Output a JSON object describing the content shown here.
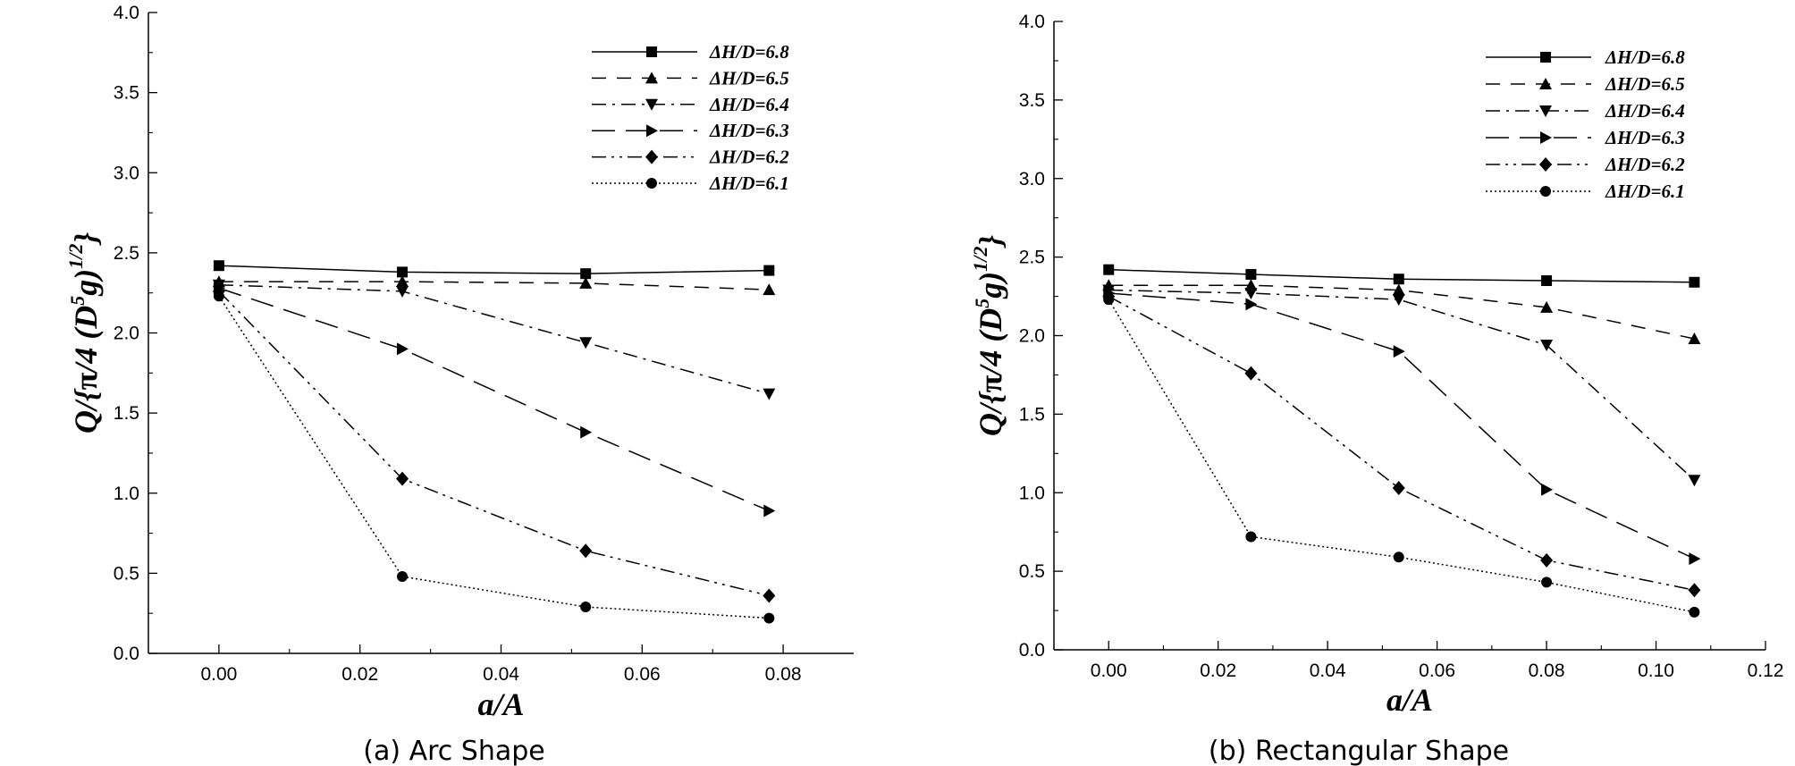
{
  "chart_data": [
    {
      "type": "line",
      "caption": "(a) Arc Shape",
      "xlabel": "a/A",
      "ylabel": "Q/{π/4 (D^5 g)^1/2}",
      "xlim": [
        -0.01,
        0.09
      ],
      "ylim": [
        0.0,
        4.0
      ],
      "xticks": [
        "0.00",
        "0.02",
        "0.04",
        "0.06",
        "0.08"
      ],
      "yticks": [
        "0.0",
        "0.5",
        "1.0",
        "1.5",
        "2.0",
        "2.5",
        "3.0",
        "3.5",
        "4.0"
      ],
      "legend_position": "top-right",
      "grid": false,
      "x": [
        0.0,
        0.026,
        0.052,
        0.078
      ],
      "series": [
        {
          "name": "ΔH/D=6.8",
          "marker": "square",
          "dash": "solid",
          "values": [
            2.42,
            2.38,
            2.37,
            2.39
          ]
        },
        {
          "name": "ΔH/D=6.5",
          "marker": "triangle-up",
          "dash": "dashed",
          "values": [
            2.32,
            2.32,
            2.31,
            2.27
          ]
        },
        {
          "name": "ΔH/D=6.4",
          "marker": "triangle-down",
          "dash": "dashdot",
          "values": [
            2.3,
            2.26,
            1.94,
            1.62
          ]
        },
        {
          "name": "ΔH/D=6.3",
          "marker": "triangle-right",
          "dash": "longdash",
          "values": [
            2.28,
            1.9,
            1.38,
            0.89
          ]
        },
        {
          "name": "ΔH/D=6.2",
          "marker": "diamond",
          "dash": "dashdotdot",
          "values": [
            2.26,
            1.09,
            0.64,
            0.36
          ]
        },
        {
          "name": "ΔH/D=6.1",
          "marker": "circle",
          "dash": "dotted",
          "values": [
            2.23,
            0.48,
            0.29,
            0.22
          ]
        }
      ]
    },
    {
      "type": "line",
      "caption": "(b) Rectangular Shape",
      "xlabel": "a/A",
      "ylabel": "Q/{π/4 (D^5 g)^1/2}",
      "xlim": [
        -0.01,
        0.12
      ],
      "ylim": [
        0.0,
        4.0
      ],
      "xticks": [
        "0.00",
        "0.02",
        "0.04",
        "0.06",
        "0.08",
        "0.10",
        "0.12"
      ],
      "yticks": [
        "0.0",
        "0.5",
        "1.0",
        "1.5",
        "2.0",
        "2.5",
        "3.0",
        "3.5",
        "4.0"
      ],
      "legend_position": "top-right",
      "grid": false,
      "x": [
        0.0,
        0.026,
        0.053,
        0.08,
        0.107
      ],
      "series": [
        {
          "name": "ΔH/D=6.8",
          "marker": "square",
          "dash": "solid",
          "values": [
            2.42,
            2.39,
            2.36,
            2.35,
            2.34
          ]
        },
        {
          "name": "ΔH/D=6.5",
          "marker": "triangle-up",
          "dash": "dashed",
          "values": [
            2.32,
            2.32,
            2.29,
            2.18,
            1.98
          ]
        },
        {
          "name": "ΔH/D=6.4",
          "marker": "triangle-down",
          "dash": "dashdot",
          "values": [
            2.29,
            2.27,
            2.23,
            1.94,
            1.08
          ]
        },
        {
          "name": "ΔH/D=6.3",
          "marker": "triangle-right",
          "dash": "longdash",
          "values": [
            2.27,
            2.2,
            1.9,
            1.02,
            0.58
          ]
        },
        {
          "name": "ΔH/D=6.2",
          "marker": "diamond",
          "dash": "dashdotdot",
          "values": [
            2.25,
            1.76,
            1.03,
            0.57,
            0.38
          ]
        },
        {
          "name": "ΔH/D=6.1",
          "marker": "circle",
          "dash": "dotted",
          "values": [
            2.23,
            0.72,
            0.59,
            0.43,
            0.24
          ]
        }
      ]
    }
  ]
}
